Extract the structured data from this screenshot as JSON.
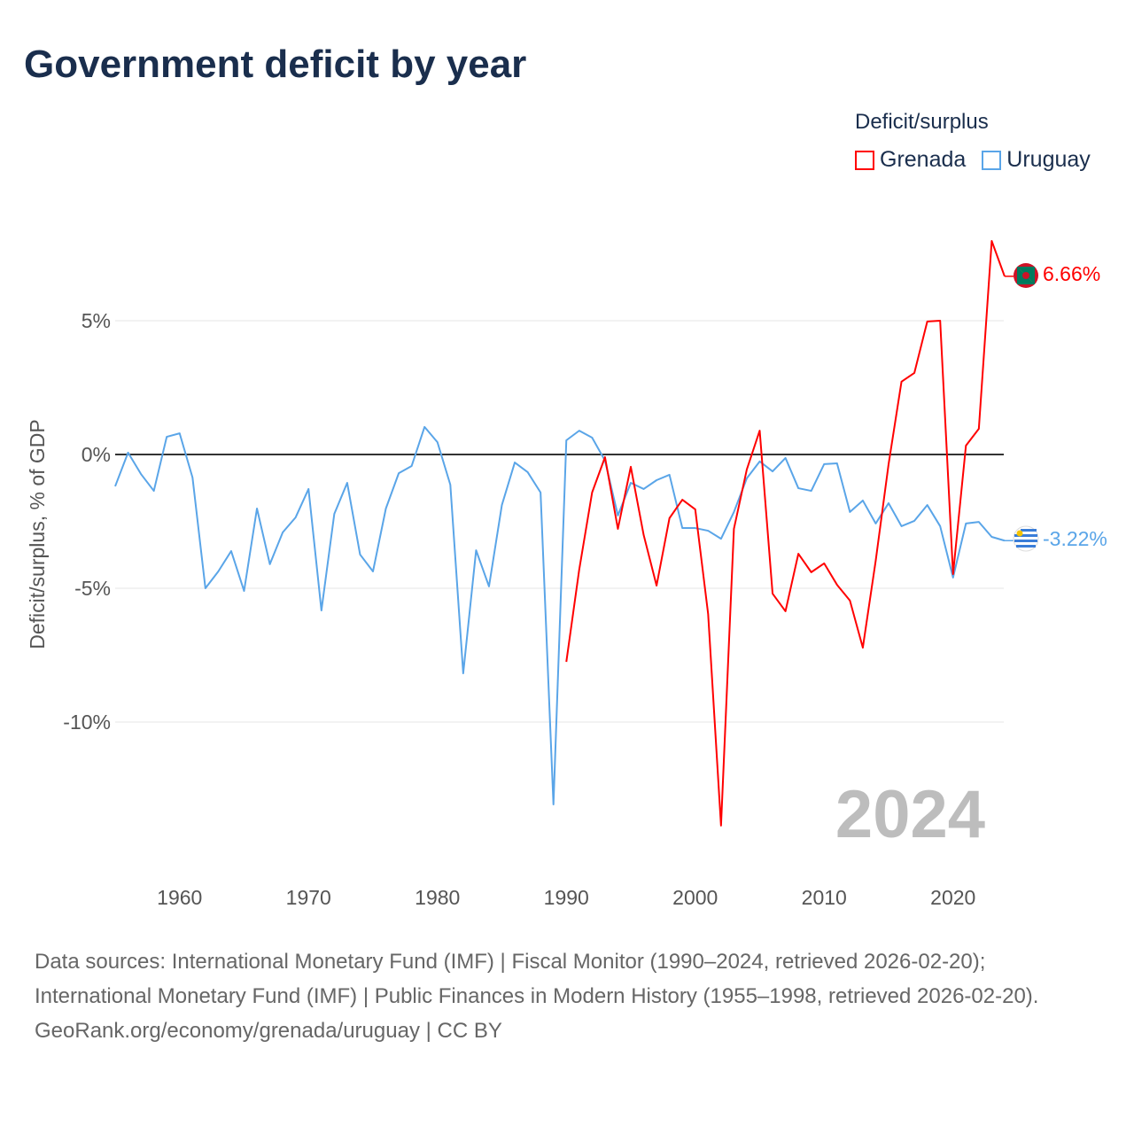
{
  "title": "Government deficit by year",
  "legend": {
    "title": "Deficit/surplus",
    "items": [
      {
        "label": "Grenada",
        "color": "#ff0000"
      },
      {
        "label": "Uruguay",
        "color": "#5aa5e8"
      }
    ]
  },
  "year_watermark": "2024",
  "end_labels": {
    "grenada": "6.66%",
    "uruguay": "-3.22%"
  },
  "sources": {
    "line1": "Data sources: International Monetary Fund (IMF) | Fiscal Monitor (1990–2024, retrieved 2026-02-20); International Monetary Fund (IMF) | Public Finances in Modern History (1955–1998, retrieved 2026-02-20).",
    "line2": "GeoRank.org/economy/grenada/uruguay | CC BY"
  },
  "chart_data": {
    "type": "line",
    "title": "Government deficit by year",
    "xlabel": "",
    "ylabel": "Deficit/surplus, % of GDP",
    "xlim": [
      1955,
      2024
    ],
    "ylim": [
      -14,
      8
    ],
    "x_ticks": [
      1960,
      1970,
      1980,
      1990,
      2000,
      2010,
      2020
    ],
    "y_ticks": [
      {
        "v": 5,
        "label": "5%"
      },
      {
        "v": 0,
        "label": "0%"
      },
      {
        "v": -5,
        "label": "-5%"
      },
      {
        "v": -10,
        "label": "-10%"
      }
    ],
    "series": [
      {
        "name": "Uruguay",
        "color": "#5aa5e8",
        "start_year": 1955,
        "values": [
          -1.19,
          0.07,
          -0.73,
          -1.36,
          0.66,
          0.79,
          -0.86,
          -5.0,
          -4.37,
          -3.61,
          -5.1,
          -2.02,
          -4.1,
          -2.91,
          -2.35,
          -1.29,
          -5.83,
          -2.22,
          -1.06,
          -3.74,
          -4.37,
          -2.02,
          -0.7,
          -0.43,
          1.03,
          0.46,
          -1.13,
          -8.18,
          -3.58,
          -4.93,
          -1.89,
          -0.3,
          -0.66,
          -1.42,
          -13.08,
          0.53,
          0.89,
          0.63,
          -0.23,
          -2.28,
          -1.06,
          -1.29,
          -0.96,
          -0.76,
          -2.75,
          -2.75,
          -2.85,
          -3.15,
          -2.15,
          -0.89,
          -0.26,
          -0.63,
          -0.13,
          -1.26,
          -1.36,
          -0.36,
          -0.33,
          -2.15,
          -1.72,
          -2.58,
          -1.82,
          -2.68,
          -2.48,
          -1.89,
          -2.68,
          -4.6,
          -2.58,
          -2.52,
          -3.08,
          -3.22
        ]
      },
      {
        "name": "Grenada",
        "color": "#ff0000",
        "start_year": 1990,
        "values": [
          -7.75,
          -4.3,
          -1.42,
          -0.1,
          -2.78,
          -0.46,
          -3.01,
          -4.9,
          -2.38,
          -1.69,
          -2.05,
          -5.96,
          -13.87,
          -2.78,
          -0.56,
          0.89,
          -5.2,
          -5.86,
          -3.71,
          -4.4,
          -4.07,
          -4.87,
          -5.46,
          -7.22,
          -3.97,
          -0.36,
          2.72,
          3.05,
          4.97,
          5.0,
          -4.47,
          0.33,
          0.96,
          7.98,
          6.66
        ]
      }
    ]
  }
}
